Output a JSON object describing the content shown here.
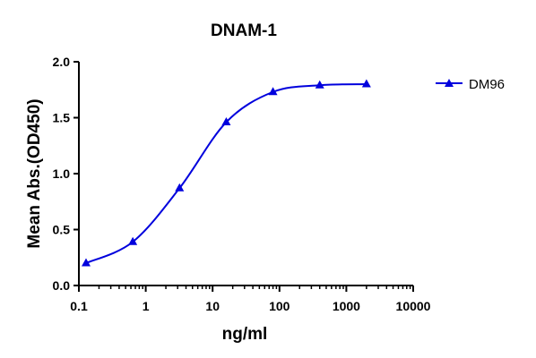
{
  "chart_data": {
    "type": "line",
    "title": "DNAM-1",
    "xlabel": "ng/ml",
    "ylabel": "Mean Abs.(OD450)",
    "x_scale": "log",
    "xlim": [
      0.1,
      10000
    ],
    "ylim": [
      0.0,
      2.0
    ],
    "x_ticks": [
      "0.1",
      "1",
      "10",
      "100",
      "1000",
      "10000"
    ],
    "x_tick_values": [
      0.1,
      1,
      10,
      100,
      1000,
      10000
    ],
    "y_ticks": [
      "0.0",
      "0.5",
      "1.0",
      "1.5",
      "2.0"
    ],
    "y_tick_values": [
      0,
      0.5,
      1.0,
      1.5,
      2.0
    ],
    "legend_position": "top-right",
    "grid": false,
    "series": [
      {
        "name": "DM96",
        "color": "#0000dd",
        "marker": "triangle",
        "x": [
          0.128,
          0.64,
          3.2,
          16,
          80,
          400,
          2000
        ],
        "y": [
          0.2,
          0.39,
          0.87,
          1.46,
          1.73,
          1.79,
          1.8
        ]
      }
    ]
  }
}
